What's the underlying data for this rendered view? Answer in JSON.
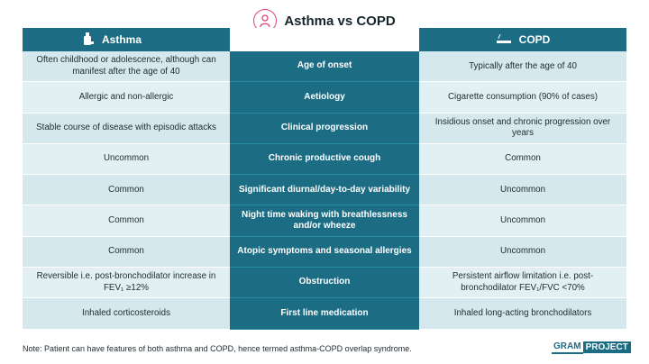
{
  "title": "Asthma vs COPD",
  "columns": {
    "left": "Asthma",
    "right": "COPD"
  },
  "rows": [
    {
      "label": "Age of onset",
      "asthma": "Often childhood or adolescence, although can manifest after the age of 40",
      "copd": "Typically after the age of 40"
    },
    {
      "label": "Aetiology",
      "asthma": "Allergic and non-allergic",
      "copd": "Cigarette consumption (90% of cases)"
    },
    {
      "label": "Clinical progression",
      "asthma": "Stable course of disease with episodic attacks",
      "copd": "Insidious onset and chronic progression over years"
    },
    {
      "label": "Chronic productive cough",
      "asthma": "Uncommon",
      "copd": "Common"
    },
    {
      "label": "Significant diurnal/day-to-day variability",
      "asthma": "Common",
      "copd": "Uncommon"
    },
    {
      "label": "Night time waking with breathlessness and/or wheeze",
      "asthma": "Common",
      "copd": "Uncommon"
    },
    {
      "label": "Atopic symptoms and seasonal allergies",
      "asthma": "Common",
      "copd": "Uncommon"
    },
    {
      "label": "Obstruction",
      "asthma": "Reversible i.e. post-bronchodilator increase in FEV₁ ≥12%",
      "copd": "Persistent airflow limitation i.e. post-bronchodilator FEV₁/FVC <70%"
    },
    {
      "label": "First line medication",
      "asthma": "Inhaled corticosteroids",
      "copd": "Inhaled long-acting bronchodilators"
    }
  ],
  "note": "Note: Patient can have features of both asthma and COPD, hence termed asthma-COPD overlap syndrome.",
  "brand": {
    "part1": "GRAM",
    "part2": "PROJECT"
  },
  "colors": {
    "primary": "#1c6d84",
    "accent": "#e0427a",
    "rowA": "#d5e8ed",
    "rowB": "#e3f0f3"
  },
  "icons": {
    "title": "lungs-person-icon",
    "asthma": "inhaler-icon",
    "copd": "cigarette-icon"
  }
}
